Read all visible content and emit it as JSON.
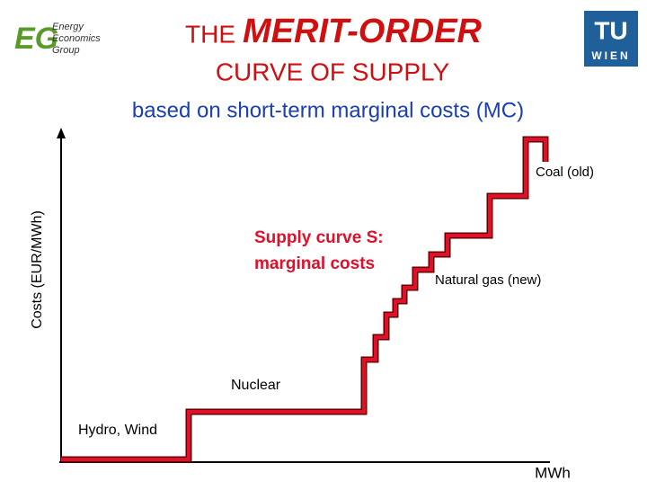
{
  "logo_left": {
    "line1": "Energy",
    "line2": "Economics",
    "line3": "Group"
  },
  "logo_right": {
    "mark": "TU",
    "text": "WIEN"
  },
  "header": {
    "title_prefix": "THE",
    "title_main": "MERIT-ORDER",
    "title_line2": "CURVE OF SUPPLY",
    "subtitle": "based on short-term marginal costs (MC)"
  },
  "diagram": {
    "y_axis_label": "Costs (EUR/MWh)",
    "x_axis_label": "MWh",
    "curve_label_line1": "Supply curve S:",
    "curve_label_line2": "marginal costs",
    "steps": [
      "Hydro, Wind",
      "Nuclear",
      "Natural gas (new)",
      "Coal (old)"
    ]
  }
}
